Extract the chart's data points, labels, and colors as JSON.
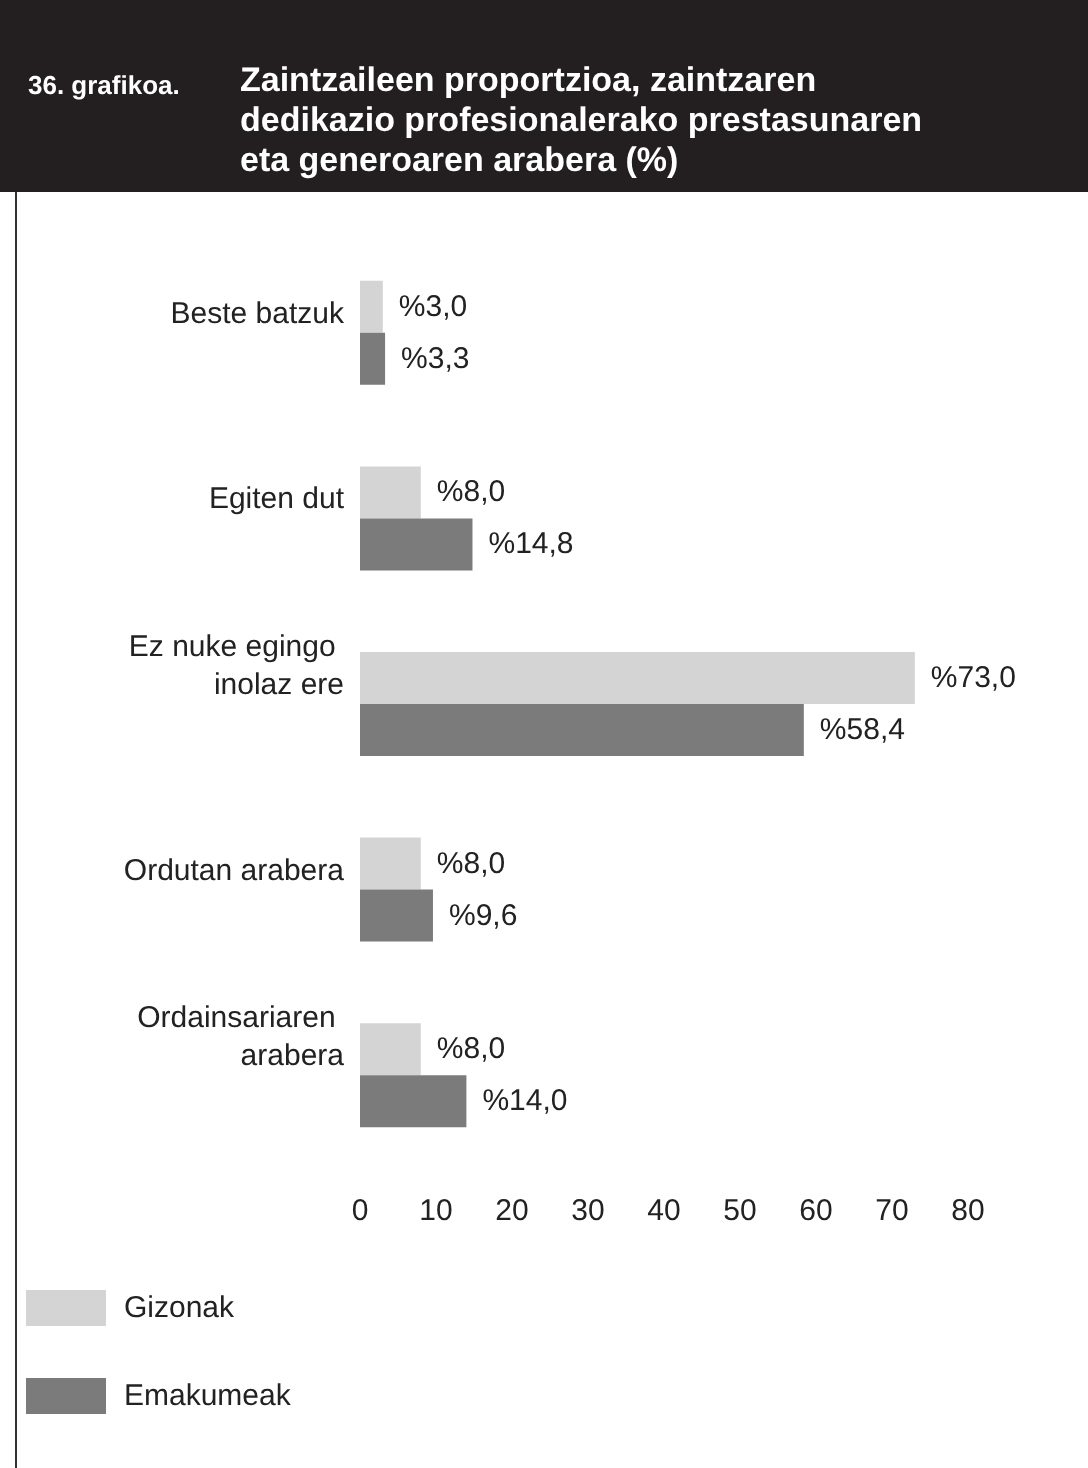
{
  "chart_data": {
    "type": "bar",
    "orientation": "horizontal",
    "title": "Zaintzaileen proportzioa, zaintzaren dedikazio profesionalerako prestasunaren eta generoaren arabera (%)",
    "annotations": [
      "36. grafikoa."
    ],
    "categories": [
      "Beste batzuk",
      "Egiten dut",
      "Ez nuke egingo inolaz ere",
      "Ordutan arabera",
      "Ordainsariaren arabera"
    ],
    "series": [
      {
        "name": "Gizonak",
        "color": "#d4d4d4",
        "values": [
          3.0,
          8.0,
          73.0,
          8.0,
          8.0
        ],
        "value_labels": [
          "%3,0",
          "%8,0",
          "%73,0",
          "%8,0",
          "%8,0"
        ]
      },
      {
        "name": "Emakumeak",
        "color": "#7b7b7b",
        "values": [
          3.3,
          14.8,
          58.4,
          9.6,
          14.0
        ],
        "value_labels": [
          "%3,3",
          "%14,8",
          "%58,4",
          "%9,6",
          "%14,0"
        ]
      }
    ],
    "xlim": [
      0,
      80
    ],
    "xticks": [
      0,
      10,
      20,
      30,
      40,
      50,
      60,
      70,
      80
    ],
    "grid": false,
    "legend": "bottom left"
  }
}
